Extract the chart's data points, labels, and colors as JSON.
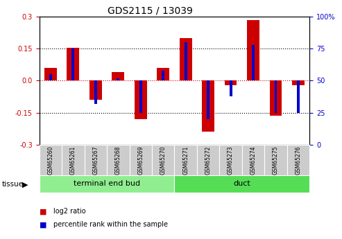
{
  "title": "GDS2115 / 13039",
  "samples": [
    "GSM65260",
    "GSM65261",
    "GSM65267",
    "GSM65268",
    "GSM65269",
    "GSM65270",
    "GSM65271",
    "GSM65272",
    "GSM65273",
    "GSM65274",
    "GSM65275",
    "GSM65276"
  ],
  "log2_ratio": [
    0.06,
    0.155,
    -0.09,
    0.04,
    -0.18,
    0.06,
    0.2,
    -0.24,
    -0.02,
    0.285,
    -0.165,
    -0.02
  ],
  "pct_rank_raw": [
    55,
    75,
    32,
    52,
    25,
    58,
    80,
    20,
    38,
    78,
    25,
    25
  ],
  "bar_color": "#cc0000",
  "pct_color": "#0000cc",
  "zero_line_color": "#cc0000",
  "ylim": [
    -0.3,
    0.3
  ],
  "yticks": [
    -0.3,
    -0.15,
    0.0,
    0.15,
    0.3
  ],
  "y2ticks": [
    0,
    25,
    50,
    75,
    100
  ],
  "groups": [
    {
      "label": "terminal end bud",
      "start": 0,
      "end": 5,
      "color": "#90ee90"
    },
    {
      "label": "duct",
      "start": 6,
      "end": 11,
      "color": "#55dd55"
    }
  ],
  "title_fontsize": 10,
  "bar_width": 0.55,
  "pct_bar_width": 0.12,
  "group_label_fontsize": 8,
  "legend_red_label": "log2 ratio",
  "legend_blue_label": "percentile rank within the sample",
  "tissue_label": "tissue",
  "tick_fontsize": 7,
  "sample_fontsize": 5.5
}
